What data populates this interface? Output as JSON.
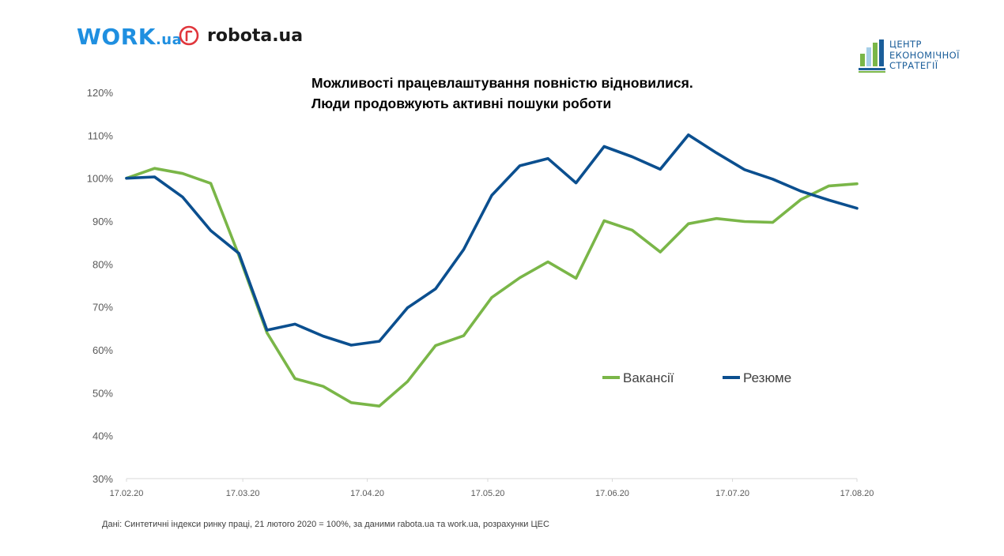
{
  "logos": {
    "work": {
      "main": "WORK",
      "suffix": ".ua"
    },
    "robota": {
      "text": "robota.ua"
    },
    "ces": {
      "lines": [
        "ЦЕНТР",
        "ЕКОНОМІЧНОЇ",
        "СТРАТЕГІЇ"
      ]
    }
  },
  "colors": {
    "vacancies": "#7ab648",
    "resumes": "#0b4f8f",
    "axis": "#d9d9d9",
    "work_logo": "#1f8fe0",
    "robota_logo": "#e0363c",
    "ces_logo": "#1b5e9a"
  },
  "chart_data": {
    "type": "line",
    "title_lines": [
      "Можливості працевлаштування повністю відновилися.",
      "Люди продовжують активні пошуки роботи"
    ],
    "ylim": [
      30,
      120
    ],
    "yticks": [
      "30%",
      "40%",
      "50%",
      "60%",
      "70%",
      "80%",
      "90%",
      "100%",
      "110%",
      "120%"
    ],
    "xticks": [
      {
        "label": "17.02.20",
        "week": 0
      },
      {
        "label": "17.03.20",
        "week": 4.14
      },
      {
        "label": "17.04.20",
        "week": 8.57
      },
      {
        "label": "17.05.20",
        "week": 12.86
      },
      {
        "label": "17.06.20",
        "week": 17.29
      },
      {
        "label": "17.07.20",
        "week": 21.57
      },
      {
        "label": "17.08.20",
        "week": 26
      }
    ],
    "grid": false,
    "legend_position": "center-right",
    "series": [
      {
        "name": "Вакансії",
        "color_key": "vacancies",
        "values": [
          100,
          102.3,
          101.1,
          98.8,
          82,
          64,
          53.3,
          51.5,
          47.7,
          46.9,
          52.6,
          61,
          63.3,
          72.2,
          76.8,
          80.5,
          76.7,
          90.1,
          87.9,
          82.8,
          89.4,
          90.6,
          89.9,
          89.7,
          95,
          98.2,
          98.7
        ]
      },
      {
        "name": "Резюме",
        "color_key": "resumes",
        "values": [
          100,
          100.3,
          95.6,
          87.8,
          82.5,
          64.6,
          66,
          63.2,
          61.1,
          62,
          69.8,
          74.2,
          83.4,
          96,
          102.9,
          104.6,
          98.9,
          107.4,
          105,
          102.1,
          110.1,
          105.9,
          102,
          99.8,
          97,
          94.9,
          93
        ]
      }
    ]
  },
  "source_note": "Дані: Синтетичні індекси ринку праці, 21 лютого 2020 = 100%, за даними rabota.ua та work.ua, розрахунки ЦЕС"
}
